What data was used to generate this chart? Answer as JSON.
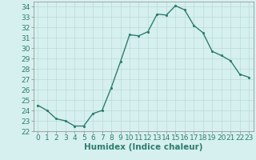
{
  "x": [
    0,
    1,
    2,
    3,
    4,
    5,
    6,
    7,
    8,
    9,
    10,
    11,
    12,
    13,
    14,
    15,
    16,
    17,
    18,
    19,
    20,
    21,
    22,
    23
  ],
  "y": [
    24.5,
    24.0,
    23.2,
    23.0,
    22.5,
    22.5,
    23.7,
    24.0,
    26.2,
    28.7,
    31.3,
    31.2,
    31.6,
    33.3,
    33.2,
    34.1,
    33.7,
    32.2,
    31.5,
    29.7,
    29.3,
    28.8,
    27.5,
    27.2
  ],
  "line_color": "#2e7d6e",
  "marker_color": "#2e7d6e",
  "bg_color": "#d6f0ef",
  "grid_color": "#b8dbd9",
  "xlabel": "Humidex (Indice chaleur)",
  "xlim": [
    -0.5,
    23.5
  ],
  "ylim": [
    22,
    34.5
  ],
  "yticks": [
    22,
    23,
    24,
    25,
    26,
    27,
    28,
    29,
    30,
    31,
    32,
    33,
    34
  ],
  "xticks": [
    0,
    1,
    2,
    3,
    4,
    5,
    6,
    7,
    8,
    9,
    10,
    11,
    12,
    13,
    14,
    15,
    16,
    17,
    18,
    19,
    20,
    21,
    22,
    23
  ],
  "xlabel_fontsize": 7.5,
  "tick_fontsize": 6.5,
  "line_width": 1.0,
  "marker_size": 2.5
}
